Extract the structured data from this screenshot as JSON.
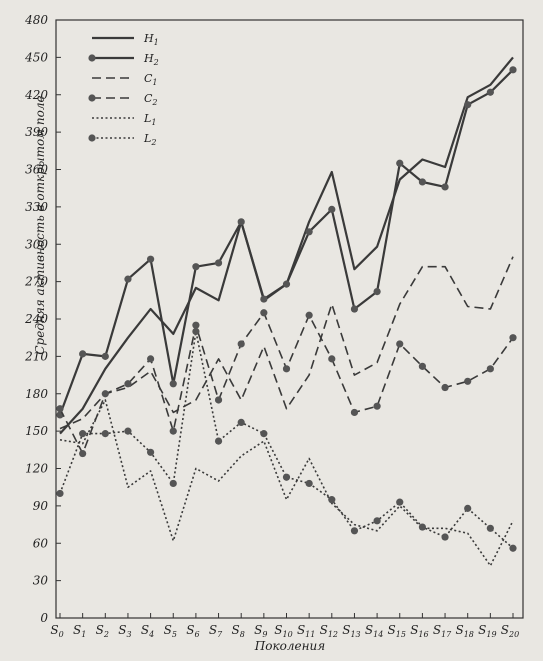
{
  "chart_data": {
    "type": "line",
    "title": "",
    "xlabel": "Поколения",
    "ylabel": "Средняя активность в открытом поле",
    "ylim": [
      0,
      480
    ],
    "yticks": [
      0,
      30,
      60,
      90,
      120,
      150,
      180,
      210,
      240,
      270,
      300,
      330,
      360,
      390,
      420,
      450,
      480
    ],
    "grid": false,
    "legend_position": "top-left",
    "categories": [
      {
        "base": "S",
        "sub": "0"
      },
      {
        "base": "S",
        "sub": "1"
      },
      {
        "base": "S",
        "sub": "2"
      },
      {
        "base": "S",
        "sub": "3"
      },
      {
        "base": "S",
        "sub": "4"
      },
      {
        "base": "S",
        "sub": "5"
      },
      {
        "base": "S",
        "sub": "6"
      },
      {
        "base": "S",
        "sub": "7"
      },
      {
        "base": "S",
        "sub": "8"
      },
      {
        "base": "S",
        "sub": "9"
      },
      {
        "base": "S",
        "sub": "10"
      },
      {
        "base": "S",
        "sub": "11"
      },
      {
        "base": "S",
        "sub": "12"
      },
      {
        "base": "S",
        "sub": "13"
      },
      {
        "base": "S",
        "sub": "14"
      },
      {
        "base": "S",
        "sub": "15"
      },
      {
        "base": "S",
        "sub": "16"
      },
      {
        "base": "S",
        "sub": "17"
      },
      {
        "base": "S",
        "sub": "18"
      },
      {
        "base": "S",
        "sub": "19"
      },
      {
        "base": "S",
        "sub": "20"
      }
    ],
    "series": [
      {
        "key": "H1",
        "name_base": "H",
        "name_sub": "1",
        "style": "solid",
        "marker": false,
        "values": [
          148,
          168,
          200,
          225,
          248,
          228,
          265,
          255,
          318,
          255,
          268,
          318,
          358,
          280,
          298,
          352,
          368,
          362,
          418,
          428,
          450
        ]
      },
      {
        "key": "H2",
        "name_base": "H",
        "name_sub": "2",
        "style": "solid",
        "marker": true,
        "values": [
          163,
          212,
          210,
          272,
          288,
          188,
          282,
          285,
          318,
          256,
          268,
          310,
          328,
          248,
          262,
          365,
          350,
          346,
          412,
          422,
          440
        ]
      },
      {
        "key": "C1",
        "name_base": "C",
        "name_sub": "1",
        "style": "dashed",
        "marker": false,
        "values": [
          152,
          160,
          180,
          185,
          198,
          165,
          175,
          208,
          175,
          218,
          168,
          195,
          252,
          195,
          205,
          252,
          282,
          282,
          250,
          248,
          290
        ]
      },
      {
        "key": "C2",
        "name_base": "C",
        "name_sub": "2",
        "style": "dashed",
        "marker": true,
        "values": [
          168,
          132,
          180,
          188,
          208,
          150,
          235,
          175,
          220,
          245,
          200,
          243,
          208,
          165,
          170,
          220,
          202,
          185,
          190,
          200,
          225
        ]
      },
      {
        "key": "L1",
        "name_base": "L",
        "name_sub": "1",
        "style": "dotted",
        "marker": false,
        "values": [
          143,
          140,
          175,
          105,
          118,
          62,
          120,
          110,
          130,
          142,
          95,
          128,
          92,
          75,
          70,
          90,
          72,
          72,
          68,
          42,
          78
        ]
      },
      {
        "key": "L2",
        "name_base": "L",
        "name_sub": "2",
        "style": "dotted",
        "marker": true,
        "values": [
          100,
          148,
          148,
          150,
          133,
          108,
          230,
          142,
          157,
          148,
          113,
          108,
          95,
          70,
          78,
          93,
          73,
          65,
          88,
          72,
          56
        ]
      }
    ]
  }
}
